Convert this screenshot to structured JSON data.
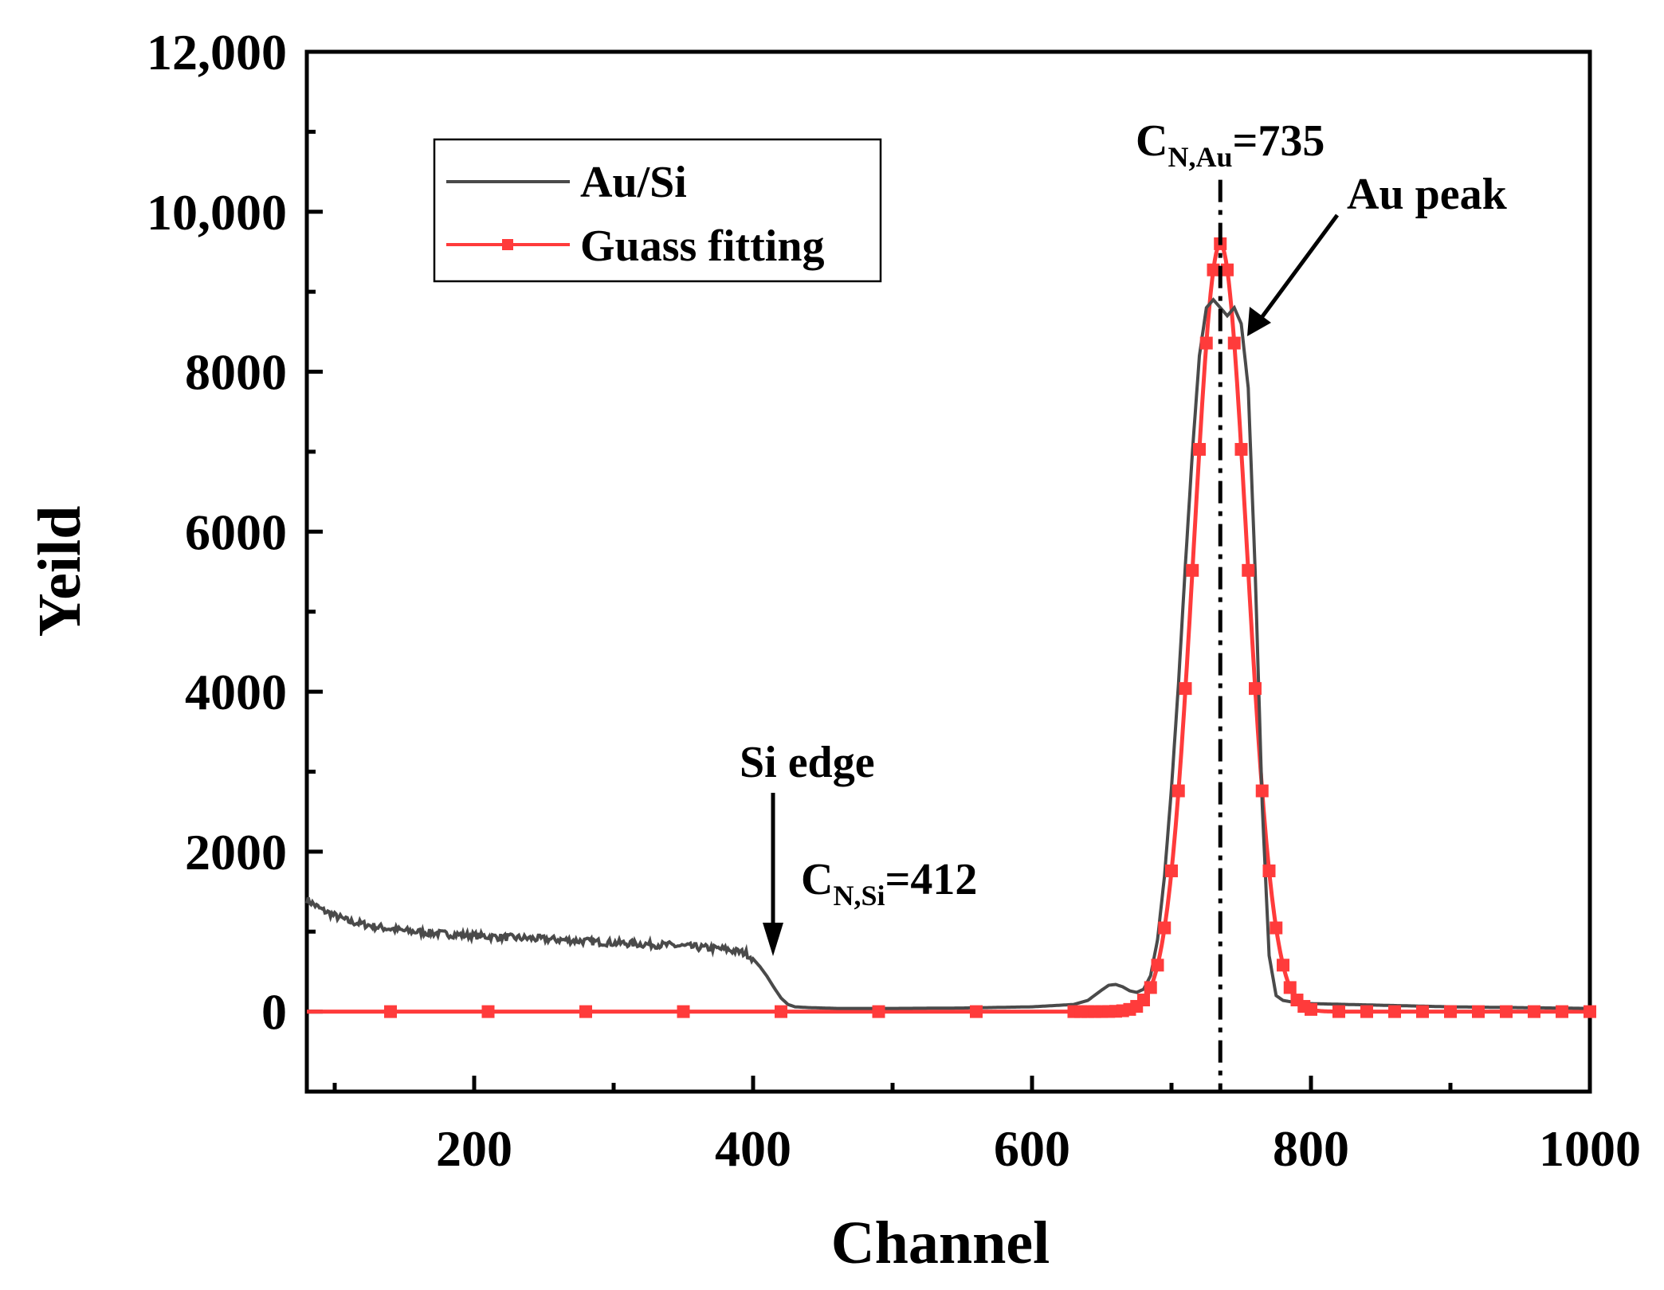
{
  "chart_data": {
    "type": "line",
    "xlabel": "Channel",
    "ylabel": "Yeild",
    "xlim": [
      80,
      1000
    ],
    "ylim": [
      -1000,
      12000
    ],
    "x_ticks": [
      200,
      400,
      600,
      800,
      1000
    ],
    "x_minor_ticks": [
      100,
      300,
      500,
      700,
      900
    ],
    "y_ticks": [
      0,
      2000,
      4000,
      6000,
      8000,
      10000,
      12000
    ],
    "y_tick_labels": [
      "0",
      "2000",
      "4000",
      "6000",
      "8000",
      "10,000",
      "12,000"
    ],
    "y_minor_ticks": [
      -1000,
      1000,
      3000,
      5000,
      7000,
      9000,
      11000
    ],
    "legend_position": "top-left",
    "series": [
      {
        "name": "Au/Si",
        "color": "#4a4a4a",
        "style": "line",
        "x": [
          80,
          90,
          100,
          110,
          130,
          150,
          180,
          220,
          260,
          300,
          340,
          380,
          395,
          400,
          405,
          410,
          415,
          420,
          425,
          430,
          440,
          460,
          500,
          550,
          600,
          630,
          640,
          650,
          655,
          660,
          665,
          670,
          675,
          680,
          685,
          690,
          695,
          700,
          705,
          710,
          715,
          720,
          725,
          730,
          735,
          740,
          745,
          750,
          755,
          760,
          765,
          770,
          775,
          780,
          790,
          800,
          850,
          900,
          950,
          1000
        ],
        "y": [
          1400,
          1280,
          1200,
          1130,
          1060,
          1010,
          970,
          930,
          900,
          860,
          830,
          780,
          730,
          660,
          560,
          440,
          300,
          170,
          90,
          60,
          50,
          40,
          40,
          45,
          60,
          90,
          140,
          270,
          330,
          340,
          310,
          260,
          240,
          280,
          450,
          900,
          1700,
          2800,
          4100,
          5600,
          7000,
          8200,
          8800,
          8900,
          8800,
          8700,
          8800,
          8600,
          7800,
          5500,
          2600,
          700,
          200,
          140,
          110,
          100,
          80,
          60,
          50,
          40
        ]
      },
      {
        "name": "Guass fitting",
        "color": "#ff3b3b",
        "style": "line-square-markers",
        "marker_x": [
          140,
          210,
          280,
          350,
          420,
          490,
          560,
          630,
          635,
          640,
          645,
          650,
          655,
          660,
          665,
          670,
          675,
          680,
          685,
          690,
          695,
          700,
          705,
          710,
          715,
          720,
          725,
          730,
          735,
          740,
          745,
          750,
          755,
          760,
          765,
          770,
          775,
          780,
          785,
          790,
          795,
          800,
          820,
          840,
          860,
          880,
          900,
          920,
          940,
          960,
          980,
          1000
        ]
      }
    ],
    "gauss_fit": {
      "amplitude": 9600,
      "center": 735,
      "sigma": 19
    },
    "reference_line_x": 735,
    "annotations": {
      "au_label_main": "C",
      "au_label_sub": "N,Au",
      "au_label_value": "=735",
      "au_peak": "Au peak",
      "si_edge": "Si edge",
      "si_label_main": "C",
      "si_label_sub": "N,Si",
      "si_label_value": "=412"
    }
  }
}
